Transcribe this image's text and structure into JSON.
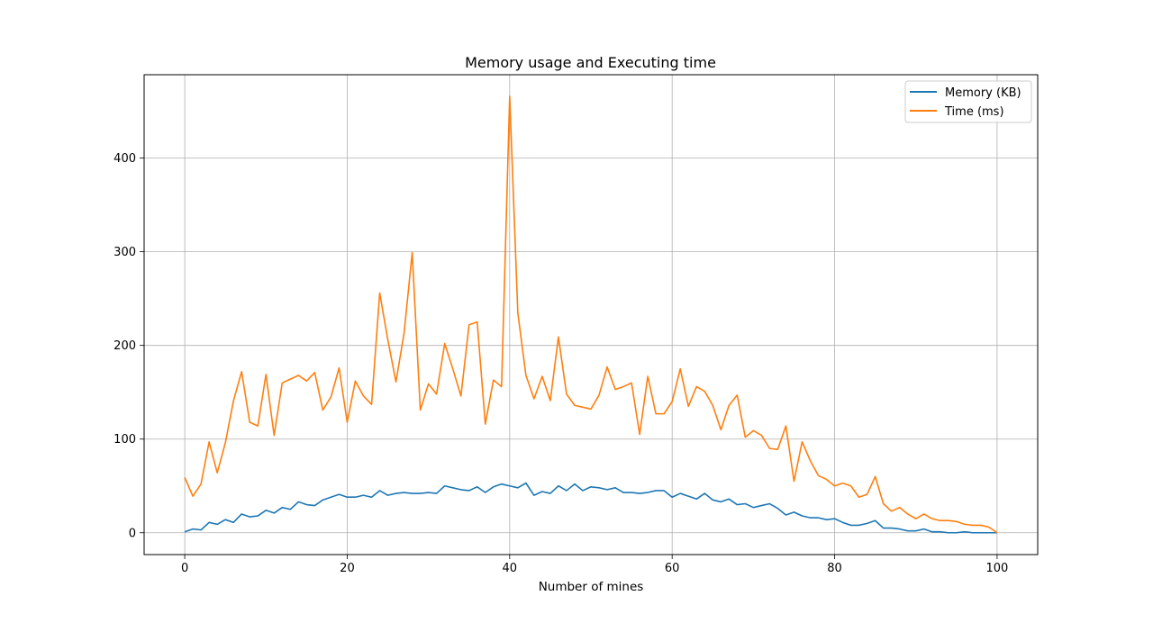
{
  "chart_data": {
    "type": "line",
    "title": "Memory usage and Executing time",
    "xlabel": "Number of mines",
    "ylabel": "",
    "xlim": [
      -5,
      105
    ],
    "ylim": [
      -23.3,
      489
    ],
    "xticks": [
      0,
      20,
      40,
      60,
      80,
      100
    ],
    "yticks": [
      0,
      100,
      200,
      300,
      400
    ],
    "grid": true,
    "legend_position": "top-right",
    "x": [
      0,
      1,
      2,
      3,
      4,
      5,
      6,
      7,
      8,
      9,
      10,
      11,
      12,
      13,
      14,
      15,
      16,
      17,
      18,
      19,
      20,
      21,
      22,
      23,
      24,
      25,
      26,
      27,
      28,
      29,
      30,
      31,
      32,
      33,
      34,
      35,
      36,
      37,
      38,
      39,
      40,
      41,
      42,
      43,
      44,
      45,
      46,
      47,
      48,
      49,
      50,
      51,
      52,
      53,
      54,
      55,
      56,
      57,
      58,
      59,
      60,
      61,
      62,
      63,
      64,
      65,
      66,
      67,
      68,
      69,
      70,
      71,
      72,
      73,
      74,
      75,
      76,
      77,
      78,
      79,
      80,
      81,
      82,
      83,
      84,
      85,
      86,
      87,
      88,
      89,
      90,
      91,
      92,
      93,
      94,
      95,
      96,
      97,
      98,
      99,
      100
    ],
    "series": [
      {
        "name": "Memory (KB)",
        "color": "#1f77b4",
        "values": [
          1,
          4,
          3,
          11,
          9,
          14,
          11,
          20,
          17,
          18,
          24,
          21,
          27,
          25,
          33,
          30,
          29,
          35,
          38,
          41,
          38,
          38,
          40,
          38,
          45,
          40,
          42,
          43,
          42,
          42,
          43,
          42,
          50,
          48,
          46,
          45,
          49,
          43,
          49,
          52,
          50,
          48,
          53,
          40,
          44,
          42,
          50,
          45,
          52,
          45,
          49,
          48,
          46,
          48,
          43,
          43,
          42,
          43,
          45,
          45,
          38,
          42,
          39,
          36,
          42,
          35,
          33,
          36,
          30,
          31,
          27,
          29,
          31,
          26,
          19,
          22,
          18,
          16,
          16,
          14,
          15,
          11,
          8,
          8,
          10,
          13,
          5,
          5,
          4,
          2,
          2,
          4,
          1,
          1,
          0,
          0,
          1,
          0,
          0,
          0,
          0
        ]
      },
      {
        "name": "Time (ms)",
        "color": "#ff7f0e",
        "values": [
          59,
          39,
          52,
          97,
          64,
          96,
          141,
          172,
          118,
          114,
          169,
          104,
          160,
          164,
          168,
          162,
          171,
          131,
          145,
          176,
          118,
          162,
          146,
          137,
          256,
          206,
          161,
          213,
          299,
          131,
          159,
          148,
          202,
          175,
          146,
          222,
          225,
          116,
          163,
          156,
          466,
          235,
          168,
          143,
          167,
          141,
          209,
          148,
          136,
          134,
          132,
          147,
          177,
          153,
          156,
          160,
          105,
          167,
          127,
          127,
          140,
          175,
          135,
          156,
          151,
          136,
          110,
          136,
          147,
          102,
          109,
          104,
          90,
          89,
          114,
          55,
          97,
          77,
          61,
          57,
          50,
          53,
          50,
          38,
          41,
          60,
          31,
          23,
          27,
          20,
          15,
          20,
          15,
          13,
          13,
          12,
          9,
          8,
          8,
          6,
          0
        ]
      }
    ]
  }
}
